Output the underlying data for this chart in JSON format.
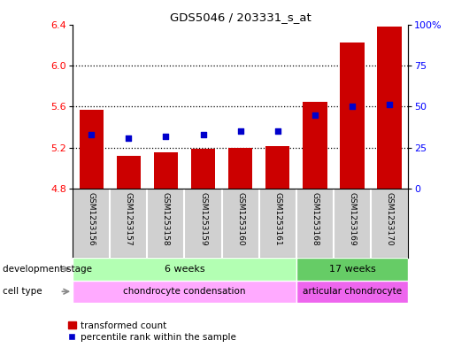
{
  "title": "GDS5046 / 203331_s_at",
  "samples": [
    "GSM1253156",
    "GSM1253157",
    "GSM1253158",
    "GSM1253159",
    "GSM1253160",
    "GSM1253161",
    "GSM1253168",
    "GSM1253169",
    "GSM1253170"
  ],
  "bar_values": [
    5.57,
    5.12,
    5.15,
    5.185,
    5.2,
    5.215,
    5.645,
    6.22,
    6.38
  ],
  "percentile_values": [
    33,
    31,
    32,
    33,
    35,
    35,
    45,
    50,
    51
  ],
  "ylim_left": [
    4.8,
    6.4
  ],
  "yticks_left": [
    4.8,
    5.2,
    5.6,
    6.0,
    6.4
  ],
  "ylim_right": [
    0,
    100
  ],
  "yticks_right": [
    0,
    25,
    50,
    75,
    100
  ],
  "bar_color": "#cc0000",
  "dot_color": "#0000cc",
  "bar_bottom": 4.8,
  "dev_stage_labels": [
    "6 weeks",
    "17 weeks"
  ],
  "dev_stage_ranges": [
    [
      0,
      6
    ],
    [
      6,
      9
    ]
  ],
  "dev_stage_colors": [
    "#b3ffb3",
    "#66cc66"
  ],
  "cell_type_labels": [
    "chondrocyte condensation",
    "articular chondrocyte"
  ],
  "cell_type_ranges": [
    [
      0,
      6
    ],
    [
      6,
      9
    ]
  ],
  "cell_type_colors": [
    "#ffaaff",
    "#ee66ee"
  ],
  "legend_bar_label": "transformed count",
  "legend_dot_label": "percentile rank within the sample",
  "bg_color": "#d0d0d0",
  "plot_bg": "#ffffff",
  "right_axis_color": "blue",
  "left_axis_color": "red"
}
